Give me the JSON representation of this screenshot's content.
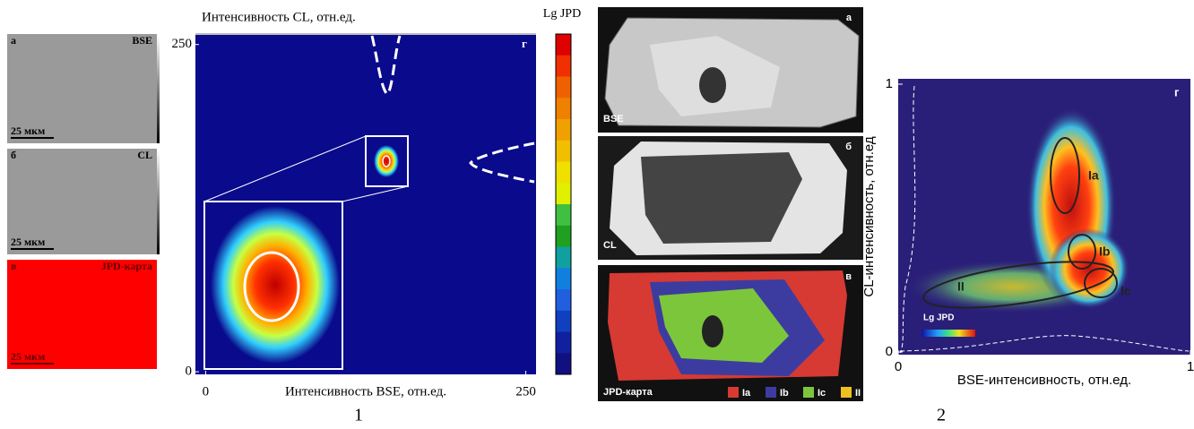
{
  "figure1": {
    "panels": [
      {
        "letter": "а",
        "label": "BSE",
        "scale": "25 мкм"
      },
      {
        "letter": "б",
        "label": "CL",
        "scale": "25 мкм"
      },
      {
        "letter": "в",
        "label": "JPD-карта",
        "scale": "25 мкм"
      }
    ],
    "plot": {
      "letter": "г",
      "y_label": "Интенсивность CL, отн.ед.",
      "x_label": "Интенсивность BSE, отн.ед.",
      "xlim": [
        -8,
        258
      ],
      "ylim": [
        -2,
        258
      ],
      "xticks": [
        0,
        250
      ],
      "yticks": [
        0,
        250
      ],
      "colorbar_label": "Lg JPD"
    },
    "caption": "1"
  },
  "figure_middle": {
    "panels": [
      {
        "letter": "а",
        "label": "BSE"
      },
      {
        "letter": "б",
        "label": "CL"
      },
      {
        "letter": "в",
        "label": "JPD-карта"
      }
    ],
    "legend": [
      {
        "name": "Ia",
        "color": "#d63a32"
      },
      {
        "name": "Ib",
        "color": "#3c3ca0"
      },
      {
        "name": "Ic",
        "color": "#7cc63c"
      },
      {
        "name": "II",
        "color": "#f0c020"
      }
    ]
  },
  "figure2": {
    "letter": "г",
    "y_label": "CL-интенсивность, отн.ед",
    "x_label": "BSE-интенсивность, отн.ед.",
    "xlim": [
      0,
      1
    ],
    "ylim": [
      -0.01,
      1.02
    ],
    "xticks": [
      0,
      1
    ],
    "yticks": [
      0,
      1
    ],
    "clusters": [
      "Ia",
      "Ib",
      "Ic",
      "II"
    ],
    "colorbar_label": "Lg JPD",
    "caption": "2"
  }
}
